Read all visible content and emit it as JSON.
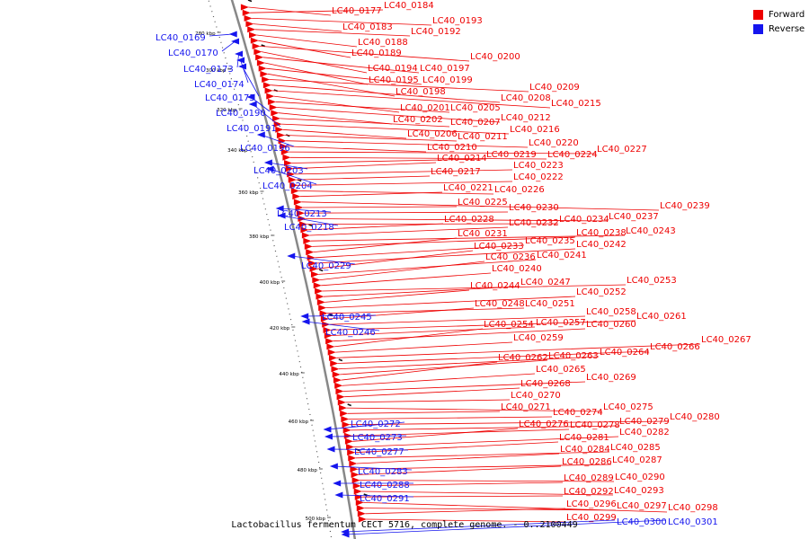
{
  "colors": {
    "forward": "#ee0000",
    "reverse": "#1515ee",
    "backbone": "#888888",
    "ticks": "#111111"
  },
  "legend": {
    "forward": "Forward",
    "reverse": "Reverse"
  },
  "caption": "Lactobacillus fermentum CECT 5716, complete genome. - 0..2100449",
  "ruler": [
    "280 kbp",
    "300 kbp",
    "320 kbp",
    "340 kbp",
    "360 kbp",
    "380 kbp",
    "400 kbp",
    "420 kbp",
    "440 kbp",
    "460 kbp",
    "480 kbp",
    "500 kbp"
  ],
  "reverse_labels": [
    "LC40_0169",
    "LC40_0170",
    "LC40_0173",
    "LC40_0174",
    "LC40_0175",
    "LC40_0190",
    "LC40_0191",
    "LC40_0196",
    "LC40_0203",
    "LC40_0204",
    "LC40_0213",
    "LC40_0218",
    "LC40_0229",
    "LC40_0245",
    "LC40_0246",
    "LC40_0272",
    "LC40_0273",
    "LC40_0277",
    "LC40_0283",
    "LC40_0288",
    "LC40_0291",
    "LC40_0300",
    "LC40_0301"
  ],
  "forward_labels": [
    "LC40_0177",
    "LC40_0184",
    "LC40_0193",
    "LC40_0183",
    "LC40_0192",
    "LC40_0188",
    "LC40_0189",
    "LC40_0200",
    "LC40_0194",
    "LC40_0197",
    "LC40_0195",
    "LC40_0199",
    "LC40_0198",
    "LC40_0209",
    "LC40_0208",
    "LC40_0215",
    "LC40_0201",
    "LC40_0205",
    "LC40_0212",
    "LC40_0202",
    "LC40_0207",
    "LC40_0216",
    "LC40_0206",
    "LC40_0211",
    "LC40_0220",
    "LC40_0210",
    "LC40_0227",
    "LC40_0224",
    "LC40_0219",
    "LC40_0214",
    "LC40_0223",
    "LC40_0217",
    "LC40_0222",
    "LC40_0226",
    "LC40_0221",
    "LC40_0239",
    "LC40_0225",
    "LC40_0230",
    "LC40_0237",
    "LC40_0234",
    "LC40_0228",
    "LC40_0232",
    "LC40_0243",
    "LC40_0238",
    "LC40_0231",
    "LC40_0235",
    "LC40_0242",
    "LC40_0233",
    "LC40_0241",
    "LC40_0236",
    "LC40_0240",
    "LC40_0253",
    "LC40_0247",
    "LC40_0244",
    "LC40_0252",
    "LC40_0251",
    "LC40_0248",
    "LC40_0258",
    "LC40_0261",
    "LC40_0257",
    "LC40_0260",
    "LC40_0254",
    "LC40_0259",
    "LC40_0267",
    "LC40_0266",
    "LC40_0264",
    "LC40_0263",
    "LC40_0262",
    "LC40_0265",
    "LC40_0269",
    "LC40_0268",
    "LC40_0270",
    "LC40_0275",
    "LC40_0271",
    "LC40_0274",
    "LC40_0280",
    "LC40_0279",
    "LC40_0278",
    "LC40_0276",
    "LC40_0282",
    "LC40_0281",
    "LC40_0285",
    "LC40_0284",
    "LC40_0287",
    "LC40_0286",
    "LC40_0290",
    "LC40_0289",
    "LC40_0293",
    "LC40_0292",
    "LC40_0298",
    "LC40_0297",
    "LC40_0296",
    "LC40_0299"
  ]
}
